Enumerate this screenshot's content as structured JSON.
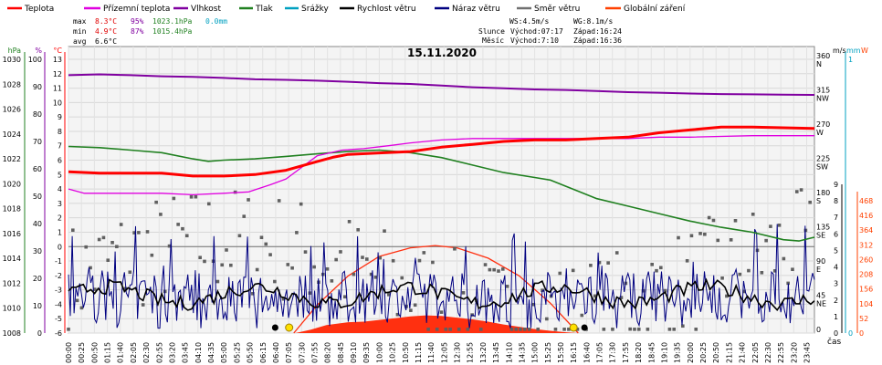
{
  "chart_data": {
    "type": "line",
    "title": "15.11.2020",
    "legend": [
      {
        "label": "Teplota",
        "color": "#ff0000"
      },
      {
        "label": "Přízemní teplota",
        "color": "#e000e0"
      },
      {
        "label": "Vlhkost",
        "color": "#8000a0"
      },
      {
        "label": "Tlak",
        "color": "#208020"
      },
      {
        "label": "Srážky",
        "color": "#00a0c0"
      },
      {
        "label": "Rychlost větru",
        "color": "#000000"
      },
      {
        "label": "Náraz větru",
        "color": "#000080"
      },
      {
        "label": "Směr větru",
        "color": "#707070"
      },
      {
        "label": "Globální záření",
        "color": "#ff4000"
      }
    ],
    "stats": {
      "max": {
        "label": "max",
        "temp": "8.3°C",
        "hum": "95%",
        "press": "1023.1hPa",
        "rain": "0.0mm"
      },
      "min": {
        "label": "min",
        "temp": "4.9°C",
        "hum": "87%",
        "press": "1015.4hPa"
      },
      "avg": {
        "label": "avg",
        "temp": "6.6°C"
      }
    },
    "info": {
      "ws": "WS:4.5m/s",
      "wg": "WG:8.1m/s",
      "sun_label": "Slunce",
      "sun_rise": "Východ:07:17",
      "sun_set": "Západ:16:24",
      "moon_label": "Měsíc",
      "moon_rise": "Východ:7:10",
      "moon_set": "Západ:16:36"
    },
    "x_axis_label": "čas",
    "x_tick_labels": [
      "00:00",
      "00:25",
      "00:50",
      "01:15",
      "01:40",
      "02:05",
      "02:30",
      "02:55",
      "03:20",
      "03:45",
      "04:10",
      "04:35",
      "05:00",
      "05:25",
      "05:50",
      "06:15",
      "06:40",
      "07:05",
      "07:30",
      "07:55",
      "08:20",
      "08:45",
      "09:10",
      "09:35",
      "10:00",
      "10:25",
      "10:50",
      "11:15",
      "11:40",
      "12:05",
      "12:30",
      "12:55",
      "13:20",
      "13:45",
      "14:10",
      "14:35",
      "15:00",
      "15:25",
      "15:50",
      "16:15",
      "16:40",
      "17:05",
      "17:30",
      "17:55",
      "18:20",
      "18:45",
      "19:10",
      "19:35",
      "20:00",
      "20:25",
      "20:50",
      "21:15",
      "21:40",
      "22:05",
      "22:30",
      "22:55",
      "23:20",
      "23:45"
    ],
    "axes": {
      "pressure": {
        "unit": "hPa",
        "range": [
          1008,
          1030
        ],
        "ticks": [
          "1008",
          "1010",
          "1012",
          "1014",
          "1016",
          "1018",
          "1020",
          "1022",
          "1024",
          "1026",
          "1028",
          "1030"
        ],
        "color": "#208020"
      },
      "humidity": {
        "unit": "%",
        "range": [
          0,
          100
        ],
        "ticks": [
          "0",
          "10",
          "20",
          "30",
          "40",
          "50",
          "60",
          "70",
          "80",
          "90",
          "100"
        ],
        "color": "#8000a0"
      },
      "temperature": {
        "unit": "°C",
        "range": [
          -6,
          13
        ],
        "ticks": [
          "-6",
          "-5",
          "-4",
          "-3",
          "-2",
          "-1",
          "0",
          "1",
          "2",
          "3",
          "4",
          "5",
          "6",
          "7",
          "8",
          "9",
          "10",
          "11",
          "12",
          "13"
        ],
        "color": "#ff0000"
      },
      "direction": {
        "ticks": [
          {
            "v": "0",
            "d": ""
          },
          {
            "v": "45",
            "d": "NE"
          },
          {
            "v": "90",
            "d": "E"
          },
          {
            "v": "135",
            "d": "SE"
          },
          {
            "v": "180",
            "d": "S"
          },
          {
            "v": "225",
            "d": "SW"
          },
          {
            "v": "270",
            "d": "W"
          },
          {
            "v": "315",
            "d": "NW"
          },
          {
            "v": "360",
            "d": "N"
          }
        ]
      },
      "wind": {
        "unit": "m/s",
        "range": [
          0,
          9
        ],
        "ticks": [
          "0",
          "1",
          "2",
          "3",
          "4",
          "5",
          "6",
          "7",
          "8",
          "9"
        ]
      },
      "rain": {
        "unit": "mm",
        "range": [
          0,
          1
        ],
        "ticks": [
          "0",
          "1"
        ],
        "color": "#00a0c0"
      },
      "radiation": {
        "unit": "W",
        "range": [
          0,
          520
        ],
        "ticks": [
          "0",
          "52",
          "104",
          "156",
          "208",
          "260",
          "312",
          "364",
          "416",
          "468"
        ],
        "color": "#ff4000"
      }
    },
    "series": [
      {
        "name": "Teplota",
        "unit": "°C",
        "points": [
          [
            0,
            5.2
          ],
          [
            1,
            5.1
          ],
          [
            2,
            5.1
          ],
          [
            3,
            5.1
          ],
          [
            4,
            4.9
          ],
          [
            5,
            4.9
          ],
          [
            6,
            5.0
          ],
          [
            7,
            5.3
          ],
          [
            8,
            5.9
          ],
          [
            8.5,
            6.2
          ],
          [
            9,
            6.4
          ],
          [
            10,
            6.5
          ],
          [
            11,
            6.6
          ],
          [
            12,
            6.9
          ],
          [
            13,
            7.1
          ],
          [
            14,
            7.3
          ],
          [
            15,
            7.4
          ],
          [
            16,
            7.4
          ],
          [
            17,
            7.5
          ],
          [
            18,
            7.6
          ],
          [
            19,
            7.9
          ],
          [
            20,
            8.1
          ],
          [
            21,
            8.3
          ],
          [
            22,
            8.3
          ],
          [
            24,
            8.2
          ]
        ]
      },
      {
        "name": "Přízemní teplota",
        "unit": "°C",
        "points": [
          [
            0,
            4.0
          ],
          [
            0.5,
            3.7
          ],
          [
            1,
            3.7
          ],
          [
            2,
            3.7
          ],
          [
            3,
            3.7
          ],
          [
            4,
            3.6
          ],
          [
            5,
            3.7
          ],
          [
            5.8,
            3.8
          ],
          [
            6.5,
            4.3
          ],
          [
            7,
            4.7
          ],
          [
            8,
            6.3
          ],
          [
            8.8,
            6.7
          ],
          [
            9.5,
            6.8
          ],
          [
            10.3,
            7.0
          ],
          [
            11,
            7.2
          ],
          [
            11.5,
            7.3
          ],
          [
            12,
            7.4
          ],
          [
            13,
            7.5
          ],
          [
            16,
            7.5
          ],
          [
            18,
            7.5
          ],
          [
            19,
            7.6
          ],
          [
            20,
            7.6
          ],
          [
            22,
            7.7
          ],
          [
            24,
            7.7
          ]
        ]
      },
      {
        "name": "Vlhkost",
        "unit": "%",
        "points": [
          [
            0,
            94.2
          ],
          [
            1,
            94.5
          ],
          [
            2,
            94.2
          ],
          [
            3,
            93.8
          ],
          [
            4,
            93.6
          ],
          [
            5,
            93.2
          ],
          [
            6,
            92.7
          ],
          [
            7,
            92.5
          ],
          [
            8,
            92.2
          ],
          [
            9,
            91.8
          ],
          [
            10,
            91.3
          ],
          [
            11,
            91.0
          ],
          [
            12,
            90.4
          ],
          [
            13,
            89.8
          ],
          [
            14,
            89.4
          ],
          [
            15,
            89.0
          ],
          [
            16,
            88.8
          ],
          [
            17,
            88.4
          ],
          [
            18,
            88.0
          ],
          [
            19,
            87.8
          ],
          [
            20,
            87.5
          ],
          [
            21,
            87.3
          ],
          [
            22,
            87.2
          ],
          [
            23,
            87.1
          ],
          [
            24,
            87.0
          ]
        ]
      },
      {
        "name": "Tlak",
        "unit": "hPa",
        "points": [
          [
            0,
            1023.0
          ],
          [
            1,
            1022.9
          ],
          [
            2,
            1022.7
          ],
          [
            3,
            1022.5
          ],
          [
            4,
            1022.0
          ],
          [
            4.5,
            1021.8
          ],
          [
            5,
            1021.9
          ],
          [
            6,
            1022.0
          ],
          [
            7,
            1022.2
          ],
          [
            8,
            1022.4
          ],
          [
            9,
            1022.6
          ],
          [
            10,
            1022.7
          ],
          [
            11,
            1022.5
          ],
          [
            12,
            1022.1
          ],
          [
            13,
            1021.5
          ],
          [
            14,
            1020.9
          ],
          [
            15,
            1020.5
          ],
          [
            15.5,
            1020.3
          ],
          [
            16,
            1019.8
          ],
          [
            17,
            1018.8
          ],
          [
            18,
            1018.2
          ],
          [
            19,
            1017.6
          ],
          [
            20,
            1017.0
          ],
          [
            21,
            1016.5
          ],
          [
            22,
            1016.1
          ],
          [
            23,
            1015.5
          ],
          [
            23.5,
            1015.4
          ],
          [
            24,
            1015.7
          ]
        ]
      },
      {
        "name": "Globální záření",
        "unit": "W",
        "points": [
          [
            7.3,
            0
          ],
          [
            7.8,
            12
          ],
          [
            8.3,
            28
          ],
          [
            9.0,
            38
          ],
          [
            9.5,
            40
          ],
          [
            10.0,
            46
          ],
          [
            10.5,
            52
          ],
          [
            11.0,
            58
          ],
          [
            11.5,
            62
          ],
          [
            12.0,
            60
          ],
          [
            12.5,
            54
          ],
          [
            13.0,
            48
          ],
          [
            13.5,
            40
          ],
          [
            14.0,
            30
          ],
          [
            14.5,
            22
          ],
          [
            15.0,
            14
          ],
          [
            15.5,
            8
          ],
          [
            16.0,
            3
          ],
          [
            16.4,
            0
          ]
        ]
      },
      {
        "name": "Globální záření",
        "unit": "W",
        "points": [
          [
            7.25,
            0
          ],
          [
            8,
            98
          ],
          [
            9,
            200
          ],
          [
            10,
            268
          ],
          [
            11,
            298
          ],
          [
            11.8,
            306
          ],
          [
            12.5,
            298
          ],
          [
            13.5,
            262
          ],
          [
            14.5,
            200
          ],
          [
            15.5,
            105
          ],
          [
            16.4,
            0
          ]
        ]
      }
    ],
    "wind_speed": {
      "name": "Rychlost větru",
      "unit": "m/s",
      "avg_level": 2.3
    },
    "wind_gust": {
      "name": "Náraz větru",
      "unit": "m/s",
      "max": 8.1
    },
    "sun_icons": [
      {
        "t": 7.1
      },
      {
        "t": 16.25
      }
    ],
    "moon_icons": [
      {
        "t": 6.65
      },
      {
        "t": 16.6
      }
    ]
  }
}
